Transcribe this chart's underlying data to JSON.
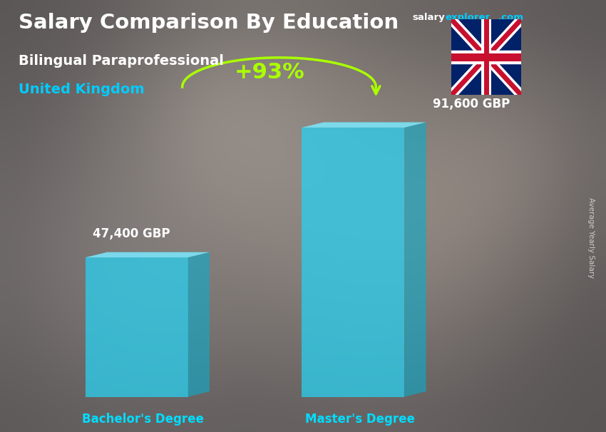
{
  "title_main": "Salary Comparison By Education",
  "subtitle1": "Bilingual Paraprofessional",
  "subtitle2": "United Kingdom",
  "categories": [
    "Bachelor's Degree",
    "Master's Degree"
  ],
  "values": [
    47400,
    91600
  ],
  "value_labels": [
    "47,400 GBP",
    "91,600 GBP"
  ],
  "pct_label": "+93%",
  "face_color": "#29d0f0",
  "top_color": "#7aeaff",
  "side_color": "#0aadcc",
  "bg_color_overlay": "#55555580",
  "bg_gray": "#666060",
  "title_color": "#ffffff",
  "subtitle1_color": "#ffffff",
  "subtitle2_color": "#00ccff",
  "value_label_color": "#ffffff",
  "pct_color": "#aaff00",
  "xlabel_color": "#00ddff",
  "side_label": "Average Yearly Salary",
  "side_label_color": "#cccccc",
  "salary_color": "#ffffff",
  "explorer_color": "#00ccff",
  "ylim_max": 100000,
  "figsize": [
    8.5,
    6.06
  ],
  "dpi": 100
}
